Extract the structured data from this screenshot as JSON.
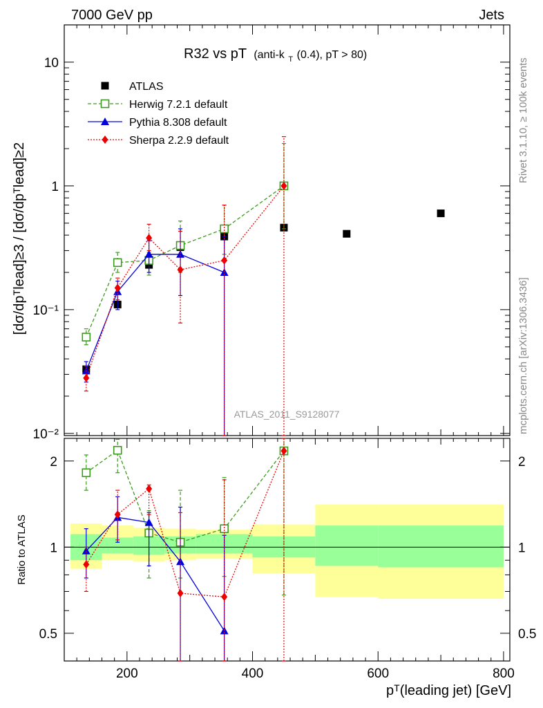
{
  "header": {
    "left": "7000 GeV pp",
    "right": "Jets",
    "side_right_top": "Rivet 3.1.10, ≥ 100k events",
    "side_right_bottom": "mcplots.cern.ch [arXiv:1306.3436]",
    "watermark": "ATLAS_2011_S9128077"
  },
  "colors": {
    "atlas": "#000000",
    "herwig": "#3a9a1a",
    "pythia": "#0000dd",
    "sherpa": "#ee0000",
    "band_inner": "#99ff99",
    "band_outer": "#ffff99"
  },
  "chart_data": [
    {
      "type": "scatter",
      "title_main": "R32 vs pT",
      "title_sub_a": "(anti-k",
      "title_sub_sub": "T",
      "title_sub_b": "(0.4), pT > 80)",
      "ylabel": "[dσ/dpᵀlead]≥3 / [dσ/dpᵀlead]≥2",
      "yscale": "log",
      "xlim": [
        100,
        810
      ],
      "ylim": [
        0.0096,
        20
      ],
      "x_ticks": [
        200,
        400,
        600,
        800
      ],
      "y_tick_labels": [
        "10",
        "1",
        "10⁻¹",
        "10⁻²"
      ],
      "y_tick_values": [
        10,
        1,
        0.1,
        0.01
      ],
      "legend_position": "top-left",
      "series": [
        {
          "name": "ATLAS",
          "style": "points",
          "x": [
            135,
            185,
            235,
            285,
            355,
            450,
            550,
            700
          ],
          "y": [
            0.033,
            0.11,
            0.23,
            0.32,
            0.39,
            0.46,
            0.41,
            0.6
          ]
        },
        {
          "name": "Herwig 7.2.1 default",
          "style": "dashed",
          "x": [
            135,
            185,
            235,
            285,
            355,
            450
          ],
          "y": [
            0.06,
            0.24,
            0.25,
            0.33,
            0.45,
            1.0
          ],
          "err_lo": [
            0.052,
            0.2,
            0.19,
            0.2,
            0.28,
            0.45
          ],
          "err_hi": [
            0.07,
            0.29,
            0.29,
            0.52,
            0.7,
            2.2
          ]
        },
        {
          "name": "Pythia 8.308 default",
          "style": "solid",
          "x": [
            135,
            185,
            235,
            285,
            355
          ],
          "y": [
            0.032,
            0.14,
            0.28,
            0.28,
            0.2
          ],
          "err_lo": [
            0.026,
            0.1,
            0.2,
            0.13,
            0.0096
          ],
          "err_hi": [
            0.038,
            0.17,
            0.36,
            0.45,
            0.39
          ]
        },
        {
          "name": "Sherpa 2.2.9 default",
          "style": "dotted",
          "x": [
            135,
            185,
            235,
            285,
            355,
            450
          ],
          "y": [
            0.028,
            0.15,
            0.38,
            0.21,
            0.25,
            1.0
          ],
          "err_lo": [
            0.022,
            0.12,
            0.3,
            0.078,
            0.0096,
            0.0096
          ],
          "err_hi": [
            0.035,
            0.18,
            0.49,
            0.43,
            0.7,
            2.5
          ]
        }
      ]
    },
    {
      "type": "scatter",
      "ylabel": "Ratio to ATLAS",
      "xlabel": "pᵀ(leading jet) [GeV]",
      "yscale": "log",
      "xlim": [
        100,
        810
      ],
      "ylim": [
        0.4,
        2.4
      ],
      "x_ticks": [
        200,
        400,
        600,
        800
      ],
      "y_tick_values": [
        0.5,
        1,
        2
      ],
      "y_tick_labels": [
        "0.5",
        "1",
        "2"
      ],
      "bands": {
        "bins": [
          [
            110,
            160
          ],
          [
            160,
            210
          ],
          [
            210,
            260
          ],
          [
            260,
            310
          ],
          [
            310,
            400
          ],
          [
            400,
            500
          ],
          [
            500,
            600
          ],
          [
            600,
            800
          ]
        ],
        "inner": [
          [
            0.9,
            1.11
          ],
          [
            0.95,
            1.08
          ],
          [
            0.94,
            1.09
          ],
          [
            0.95,
            1.09
          ],
          [
            0.95,
            1.11
          ],
          [
            0.92,
            1.09
          ],
          [
            0.86,
            1.19
          ],
          [
            0.85,
            1.19
          ]
        ],
        "outer": [
          [
            0.84,
            1.21
          ],
          [
            0.9,
            1.19
          ],
          [
            0.89,
            1.17
          ],
          [
            0.9,
            1.16
          ],
          [
            0.91,
            1.15
          ],
          [
            0.81,
            1.2
          ],
          [
            0.67,
            1.41
          ],
          [
            0.66,
            1.41
          ]
        ]
      },
      "series": [
        {
          "name": "Herwig 7.2.1 default",
          "style": "dashed",
          "x": [
            135,
            185,
            235,
            285,
            355,
            450
          ],
          "y": [
            1.82,
            2.18,
            1.12,
            1.04,
            1.16,
            2.17
          ],
          "err_lo": [
            1.58,
            1.82,
            0.78,
            0.78,
            0.79,
            0.68
          ],
          "err_hi": [
            2.1,
            2.38,
            1.34,
            1.58,
            1.75,
            2.4
          ]
        },
        {
          "name": "Pythia 8.308 default",
          "style": "solid",
          "x": [
            135,
            185,
            235,
            285,
            355
          ],
          "y": [
            0.97,
            1.27,
            1.22,
            0.89,
            0.51
          ],
          "err_lo": [
            0.78,
            1.04,
            0.86,
            0.4,
            0.4
          ],
          "err_hi": [
            1.16,
            1.5,
            1.32,
            1.38,
            1.1
          ]
        },
        {
          "name": "Sherpa 2.2.9 default",
          "style": "dotted",
          "x": [
            135,
            185,
            235,
            285,
            355,
            450
          ],
          "y": [
            0.87,
            1.3,
            1.6,
            0.69,
            0.67,
            2.17
          ],
          "err_lo": [
            0.7,
            1.06,
            1.3,
            0.4,
            0.4,
            0.4
          ],
          "err_hi": [
            1.0,
            1.58,
            1.65,
            1.32,
            1.72,
            2.4
          ]
        }
      ]
    }
  ]
}
